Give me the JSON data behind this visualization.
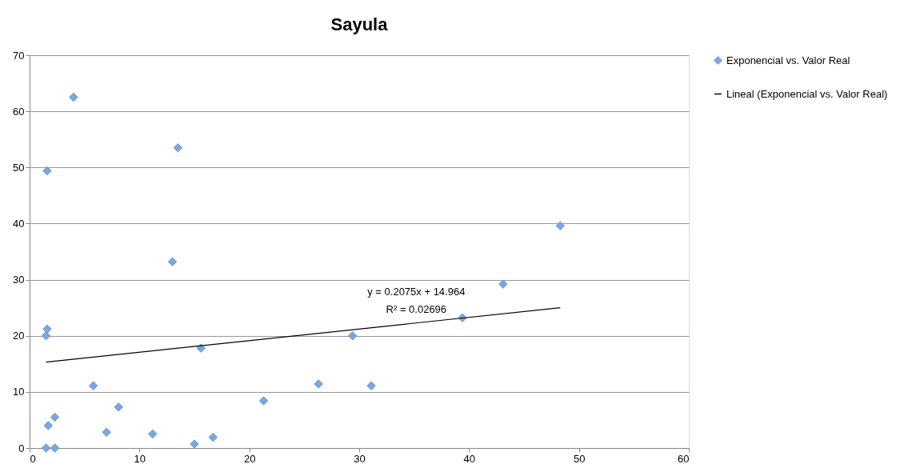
{
  "chart_data": {
    "type": "scatter",
    "title": "Sayula",
    "xlim": [
      0,
      60
    ],
    "xticks": [
      0,
      10,
      20,
      30,
      40,
      50,
      60
    ],
    "ylim": [
      0,
      70
    ],
    "yticks": [
      0,
      10,
      20,
      30,
      40,
      50,
      60,
      70
    ],
    "grid": "y",
    "legend": "right",
    "series": [
      {
        "name": "Exponencial vs. Valor Real",
        "color": "#7ba7df",
        "marker": "diamond",
        "x": [
          1.5,
          2.3,
          1.7,
          2.3,
          1.5,
          1.6,
          1.6,
          4.0,
          5.8,
          7.0,
          8.1,
          11.2,
          13.0,
          13.5,
          15.0,
          15.6,
          16.7,
          21.3,
          26.3,
          29.4,
          31.1,
          39.4,
          43.1,
          48.3
        ],
        "values": [
          0,
          0,
          4.0,
          5.5,
          20.0,
          21.2,
          49.4,
          62.5,
          11.1,
          2.8,
          7.3,
          2.5,
          33.2,
          53.5,
          0.7,
          17.8,
          1.9,
          8.4,
          11.4,
          20.0,
          11.1,
          23.2,
          29.2,
          39.6
        ]
      },
      {
        "name": "Lineal (Exponencial vs. Valor Real)",
        "color": "#000000",
        "type": "line",
        "line_style": "solid",
        "x": [
          1.5,
          48.3
        ],
        "values": [
          15.3,
          25.0
        ]
      }
    ],
    "annotations": [
      "y = 0.2075x + 14.964",
      "R² = 0.02696"
    ]
  }
}
